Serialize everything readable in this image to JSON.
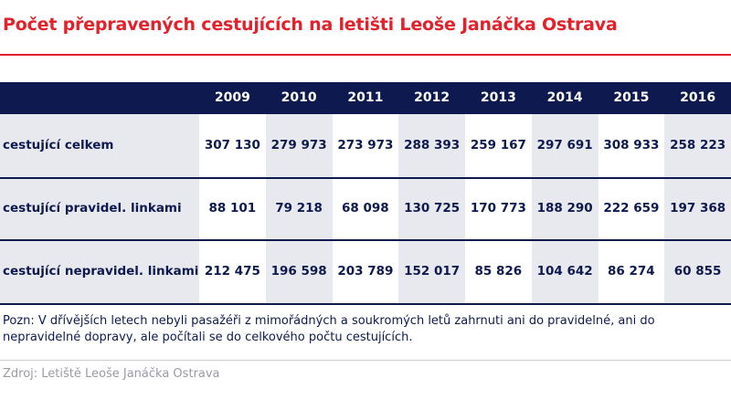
{
  "header": {
    "title": "Počet přepravených cestujících na letišti Leoše Janáčka Ostrava"
  },
  "table": {
    "columns": [
      "2009",
      "2010",
      "2011",
      "2012",
      "2013",
      "2014",
      "2015",
      "2016"
    ],
    "rows": [
      {
        "label": "cestující celkem",
        "cells": [
          "307 130",
          "279 973",
          "273 973",
          "288 393",
          "259 167",
          "297 691",
          "308 933",
          "258 223"
        ]
      },
      {
        "label": "cestující pravidel. linkami",
        "cells": [
          "88 101",
          "79 218",
          "68 098",
          "130 725",
          "170 773",
          "188 290",
          "222 659",
          "197 368"
        ]
      },
      {
        "label": "cestující nepravidel. linkami",
        "cells": [
          "212 475",
          "196 598",
          "203 789",
          "152 017",
          "85 826",
          "104 642",
          "86 274",
          "60 855"
        ]
      }
    ]
  },
  "footer": {
    "note": "Pozn: V dřívějších letech nebyli pasažéři z mimořádných a soukromých letů zahrnuti ani do pravidelné, ani do nepravidelné dopravy, ale počítali se do celkového počtu cestujících.",
    "source": "Zdroj: Letiště Leoše Janáčka Ostrava"
  }
}
